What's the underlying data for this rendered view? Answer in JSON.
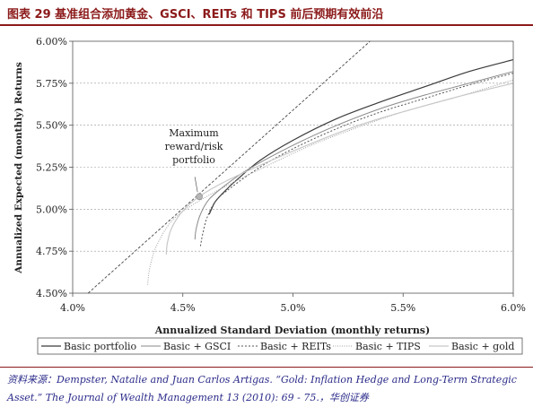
{
  "header": {
    "title": "图表 29   基准组合添加黄金、GSCI、REITs 和 TIPS 前后预期有效前沿"
  },
  "chart_data": {
    "type": "line",
    "xlabel": "Annualized Standard Deviation (monthly returns)",
    "ylabel": "Annualized Expected (monthly) Returns",
    "xlim": [
      4.0,
      6.0
    ],
    "ylim": [
      4.5,
      6.0
    ],
    "x_ticks": [
      "4.0%",
      "4.5%",
      "5.0%",
      "5.5%",
      "6.0%"
    ],
    "y_ticks": [
      "4.50%",
      "4.75%",
      "5.00%",
      "5.25%",
      "5.50%",
      "5.75%",
      "6.00%"
    ],
    "grid": "horizontal dashed",
    "legend_position": "bottom",
    "annotation": {
      "lines": [
        "Maximum",
        "reward/risk",
        "portfolio"
      ],
      "point": [
        4.575,
        5.075
      ]
    },
    "capital_market_line": {
      "x": [
        4.07,
        5.35
      ],
      "y": [
        4.5,
        6.0
      ],
      "style": "dashed"
    },
    "series": [
      {
        "name": "Basic portfolio",
        "color": "#3a3a3a",
        "dash": "",
        "width": 1.2,
        "x": [
          4.62,
          4.63,
          4.65,
          4.7,
          4.75,
          4.85,
          5.0,
          5.2,
          5.4,
          5.6,
          5.8,
          6.0
        ],
        "y": [
          4.97,
          5.0,
          5.05,
          5.12,
          5.18,
          5.29,
          5.41,
          5.54,
          5.64,
          5.73,
          5.82,
          5.89
        ]
      },
      {
        "name": "Basic + GSCI",
        "color": "#8a8a8a",
        "dash": "",
        "width": 1.0,
        "x": [
          4.555,
          4.56,
          4.58,
          4.62,
          4.7,
          4.8,
          5.0,
          5.2,
          5.4,
          5.6,
          5.8,
          6.0
        ],
        "y": [
          4.82,
          4.88,
          4.97,
          5.06,
          5.15,
          5.24,
          5.38,
          5.5,
          5.6,
          5.68,
          5.75,
          5.82
        ]
      },
      {
        "name": "Basic + REITs",
        "color": "#555555",
        "dash": "2,2",
        "width": 1.0,
        "x": [
          4.58,
          4.59,
          4.61,
          4.65,
          4.72,
          4.85,
          5.0,
          5.2,
          5.4,
          5.6,
          5.8,
          6.0
        ],
        "y": [
          4.78,
          4.85,
          4.95,
          5.05,
          5.13,
          5.25,
          5.36,
          5.48,
          5.58,
          5.66,
          5.74,
          5.81
        ]
      },
      {
        "name": "Basic + TIPS",
        "color": "#a0a0a0",
        "dash": "1,1.5",
        "width": 1.0,
        "x": [
          4.34,
          4.35,
          4.38,
          4.45,
          4.55,
          4.7,
          4.9,
          5.1,
          5.3,
          5.5,
          5.75,
          6.0
        ],
        "y": [
          4.55,
          4.65,
          4.78,
          4.93,
          5.03,
          5.14,
          5.27,
          5.39,
          5.49,
          5.58,
          5.67,
          5.77
        ]
      },
      {
        "name": "Basic + gold",
        "color": "#c8c8c8",
        "dash": "",
        "width": 1.2,
        "x": [
          4.425,
          4.43,
          4.45,
          4.5,
          4.58,
          4.7,
          4.9,
          5.1,
          5.3,
          5.5,
          5.75,
          6.0
        ],
        "y": [
          4.73,
          4.8,
          4.89,
          4.99,
          5.08,
          5.17,
          5.29,
          5.4,
          5.5,
          5.58,
          5.67,
          5.75
        ]
      }
    ]
  },
  "source": {
    "text": "资料来源：Dempster, Natalie and Juan Carlos Artigas. “Gold: Inflation Hedge and Long-Term Strategic Asset.” The Journal of Wealth Management 13 (2010): 69 - 75.，华创证券"
  }
}
